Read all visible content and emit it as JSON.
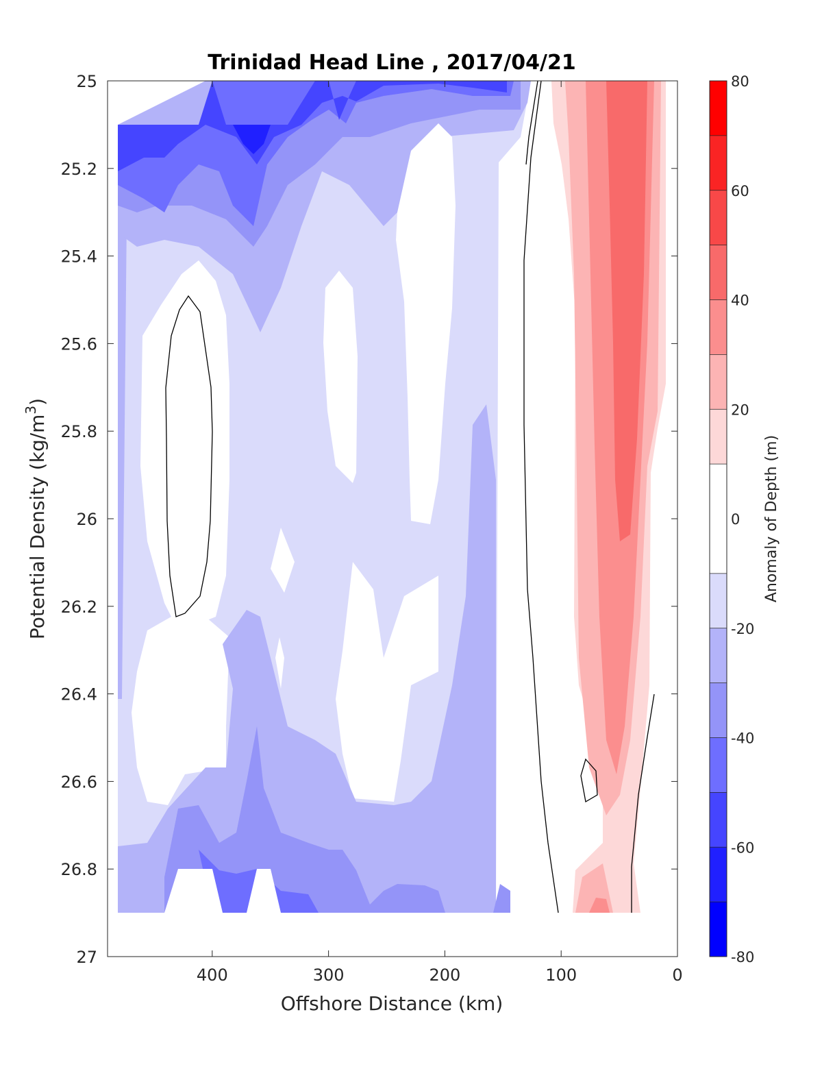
{
  "chart_data": {
    "type": "heatmap",
    "subtype": "filled-contour",
    "title": "Trinidad Head Line , 2017/04/21",
    "xlabel": "Offshore Distance (km)",
    "ylabel": "Potential Density (kg/m",
    "ylabel_superscript": "3",
    "ylabel_close": ")",
    "x_reversed": true,
    "y_reversed": true,
    "xlim": [
      0,
      490
    ],
    "ylim": [
      25,
      27
    ],
    "xticks": [
      400,
      300,
      200,
      100,
      0
    ],
    "yticks": [
      25,
      25.2,
      25.4,
      25.6,
      25.8,
      26,
      26.2,
      26.4,
      26.6,
      26.8,
      27
    ],
    "ytick_labels": [
      "25",
      "25.2",
      "25.4",
      "25.6",
      "25.8",
      "26",
      "26.2",
      "26.4",
      "26.6",
      "26.8",
      "27"
    ],
    "grid": false,
    "colorbar": {
      "label": "Anomaly of Depth (m)",
      "range": [
        -80,
        80
      ],
      "ticks": [
        80,
        60,
        40,
        20,
        0,
        -20,
        -40,
        -60,
        -80
      ],
      "tick_labels": [
        "80",
        "60",
        "40",
        "20",
        "0",
        "-20",
        "-40",
        "-60",
        "-80"
      ],
      "levels": [
        -80,
        -70,
        -60,
        -50,
        -40,
        -30,
        -20,
        -10,
        10,
        20,
        30,
        40,
        50,
        60,
        70,
        80
      ],
      "colors": [
        "#0000ff",
        "#2020ff",
        "#4545ff",
        "#6e6eff",
        "#9494f8",
        "#b3b3f9",
        "#dadbfb",
        "#ffffff",
        "#fdd8d8",
        "#fcb4b4",
        "#fb8e8e",
        "#f86a6a",
        "#f84848",
        "#fa2424",
        "#ff0000"
      ]
    },
    "data_extent": {
      "x": [
        480,
        10
      ],
      "y": [
        25.1,
        26.9
      ]
    },
    "zero_contour_note": "black lines mark the 0 m contour"
  }
}
